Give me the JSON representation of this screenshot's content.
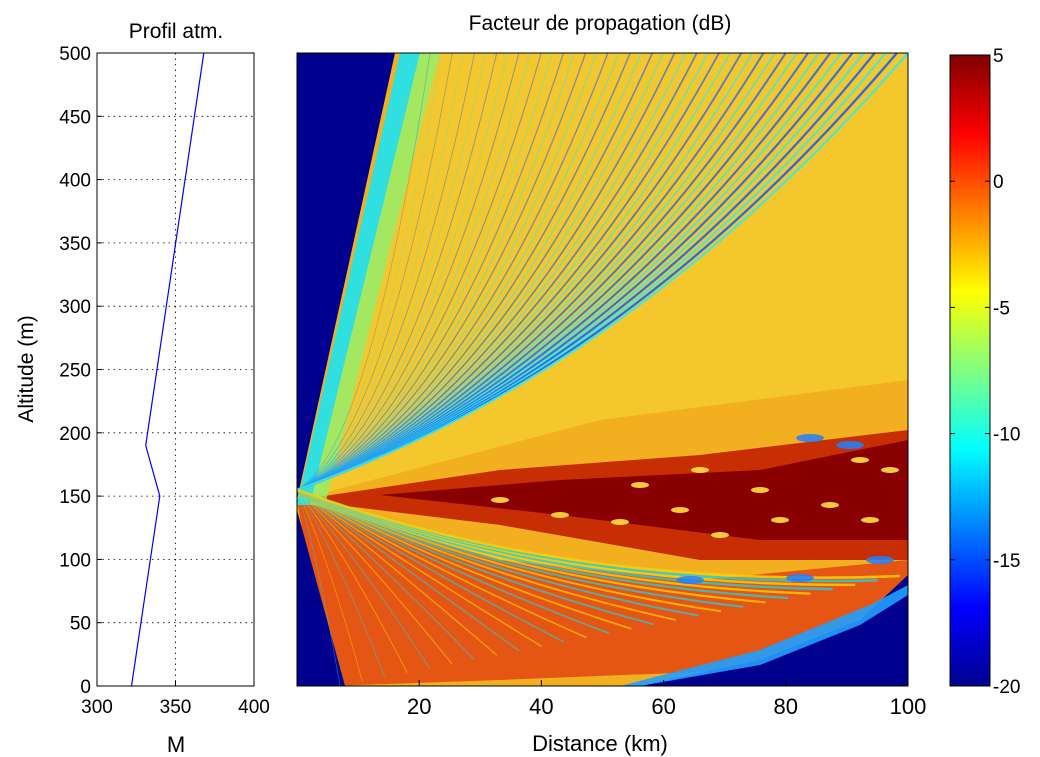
{
  "chart_data": [
    {
      "type": "line",
      "title": "Profil atm.",
      "xlabel": "M",
      "ylabel": "Altitude (m)",
      "xlim": [
        300,
        400
      ],
      "ylim": [
        0,
        500
      ],
      "xticks": [
        "300",
        "350",
        "400"
      ],
      "yticks": [
        "0",
        "50",
        "100",
        "150",
        "200",
        "250",
        "300",
        "350",
        "400",
        "450",
        "500"
      ],
      "grid": true,
      "line_color": "#0000ff",
      "series": [
        {
          "x": [
            322,
            340,
            331,
            368
          ],
          "y": [
            0,
            150,
            190,
            500
          ]
        }
      ]
    },
    {
      "type": "heatmap",
      "title": "Facteur de propagation (dB)",
      "xlabel": "Distance (km)",
      "xlim": [
        0,
        100
      ],
      "ylim": [
        0,
        500
      ],
      "xticks": [
        "20",
        "40",
        "60",
        "80",
        "100"
      ],
      "colormap": "jet",
      "colorbar": {
        "clim": [
          -20,
          5
        ],
        "ticks": [
          "5",
          "0",
          "-5",
          "-10",
          "-15",
          "-20"
        ]
      },
      "source": {
        "distance_km": 0,
        "altitude_m": 155
      }
    }
  ]
}
